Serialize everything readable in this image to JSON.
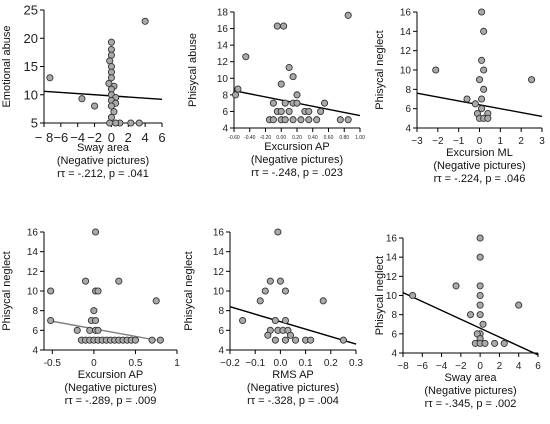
{
  "colors": {
    "point_fill": "#a9a9a9",
    "point_stroke": "#333333",
    "regression_line": "#000000",
    "regression_line_gray": "#808080",
    "axis": "#000000"
  },
  "chart_data": [
    {
      "type": "scatter",
      "xlabel": "Sway area",
      "subtitle": "(Negative pictures)",
      "stat": "rτ = -.212, p = .041",
      "ylabel": "Emotional abuse",
      "xlim": [
        -8,
        6
      ],
      "ylim": [
        5,
        25
      ],
      "xticks": [
        -8,
        -6,
        -4,
        -2,
        0,
        2,
        4,
        6
      ],
      "xtick_labels": [
        "− 8",
        "−6",
        "−4",
        "−2",
        "0",
        "2",
        "4",
        "6"
      ],
      "yticks": [
        5,
        10,
        15,
        20,
        25
      ],
      "grid": false,
      "fit_line": {
        "x": [
          -8,
          6
        ],
        "y": [
          10.6,
          9.2
        ],
        "color": "black"
      },
      "points": [
        {
          "x": -7.3,
          "y": 13
        },
        {
          "x": -3.5,
          "y": 9.3
        },
        {
          "x": -2,
          "y": 8
        },
        {
          "x": 4,
          "y": 23
        },
        {
          "x": 2.3,
          "y": 5
        },
        {
          "x": 3.3,
          "y": 5
        },
        {
          "x": 0,
          "y": 19.3
        },
        {
          "x": 0,
          "y": 18
        },
        {
          "x": 0,
          "y": 17
        },
        {
          "x": -0.2,
          "y": 16
        },
        {
          "x": 0,
          "y": 15
        },
        {
          "x": 0,
          "y": 14
        },
        {
          "x": 0,
          "y": 13
        },
        {
          "x": -0.3,
          "y": 12
        },
        {
          "x": 0.3,
          "y": 11.5
        },
        {
          "x": 0,
          "y": 11
        },
        {
          "x": 0,
          "y": 10
        },
        {
          "x": 0.5,
          "y": 9.5
        },
        {
          "x": 0,
          "y": 9
        },
        {
          "x": 0.5,
          "y": 8.5
        },
        {
          "x": 0,
          "y": 8
        },
        {
          "x": 0.3,
          "y": 7
        },
        {
          "x": 0,
          "y": 6
        },
        {
          "x": 1,
          "y": 5
        },
        {
          "x": 0.5,
          "y": 5
        },
        {
          "x": -0.2,
          "y": 5
        }
      ]
    },
    {
      "type": "scatter",
      "xlabel": "Excursion AP",
      "subtitle": "(Negative pictures)",
      "stat": "rτ = -.248, p = .023",
      "ylabel": "Phisycal abuse",
      "xlim": [
        -0.6,
        1.0
      ],
      "ylim": [
        4,
        18
      ],
      "xticks": [
        -0.6,
        -0.4,
        -0.2,
        0,
        0.2,
        0.4,
        0.6,
        0.8,
        1.0
      ],
      "xtick_labels": [
        "-0.60",
        "-0.40",
        "-0.20",
        "0.00",
        "0.20",
        "0.40",
        "0.60",
        "0.80",
        "1.00"
      ],
      "yticks": [
        4,
        6,
        8,
        10,
        12,
        14,
        16,
        18
      ],
      "grid": false,
      "fit_line": {
        "x": [
          -0.6,
          1.0
        ],
        "y": [
          8.5,
          5.5
        ],
        "color": "black"
      },
      "points": [
        {
          "x": -0.55,
          "y": 8.7
        },
        {
          "x": -0.58,
          "y": 8
        },
        {
          "x": -0.45,
          "y": 12.6
        },
        {
          "x": -0.05,
          "y": 16.3
        },
        {
          "x": 0.03,
          "y": 16.3
        },
        {
          "x": 0.85,
          "y": 17.6
        },
        {
          "x": 0.1,
          "y": 11.3
        },
        {
          "x": 0.15,
          "y": 10.2
        },
        {
          "x": 0.0,
          "y": 9.3
        },
        {
          "x": 0.2,
          "y": 8
        },
        {
          "x": -0.1,
          "y": 7
        },
        {
          "x": 0.05,
          "y": 7
        },
        {
          "x": 0.15,
          "y": 7
        },
        {
          "x": 0.2,
          "y": 7
        },
        {
          "x": -0.05,
          "y": 6
        },
        {
          "x": 0.0,
          "y": 6
        },
        {
          "x": 0.1,
          "y": 6
        },
        {
          "x": 0.3,
          "y": 6
        },
        {
          "x": 0.35,
          "y": 6
        },
        {
          "x": 0.5,
          "y": 6
        },
        {
          "x": 0.55,
          "y": 7
        },
        {
          "x": -0.15,
          "y": 5
        },
        {
          "x": -0.1,
          "y": 5
        },
        {
          "x": 0.0,
          "y": 5
        },
        {
          "x": 0.05,
          "y": 5
        },
        {
          "x": 0.15,
          "y": 5
        },
        {
          "x": 0.25,
          "y": 5
        },
        {
          "x": 0.35,
          "y": 5
        },
        {
          "x": 0.45,
          "y": 5
        },
        {
          "x": 0.75,
          "y": 5
        },
        {
          "x": 0.85,
          "y": 5
        }
      ]
    },
    {
      "type": "scatter",
      "xlabel": "Excursion ML",
      "subtitle": "(Negative pictures)",
      "stat": "rτ = -.224, p = .046",
      "ylabel": "Phisycal neglect",
      "xlim": [
        -3,
        3
      ],
      "ylim": [
        4,
        16
      ],
      "xticks": [
        -3,
        -2,
        -1,
        0,
        1,
        2,
        3
      ],
      "xtick_labels": [
        "−3",
        "−2",
        "−1",
        "0",
        "1",
        "2",
        "3"
      ],
      "yticks": [
        4,
        6,
        8,
        10,
        12,
        14,
        16
      ],
      "grid": false,
      "fit_line": {
        "x": [
          -3,
          3
        ],
        "y": [
          7.6,
          5.2
        ],
        "color": "black"
      },
      "points": [
        {
          "x": -2.1,
          "y": 10
        },
        {
          "x": 0.1,
          "y": 16
        },
        {
          "x": 2.5,
          "y": 9
        },
        {
          "x": 0.2,
          "y": 14
        },
        {
          "x": 0.1,
          "y": 11
        },
        {
          "x": 0.2,
          "y": 10
        },
        {
          "x": 0.0,
          "y": 9
        },
        {
          "x": 0.2,
          "y": 8
        },
        {
          "x": -0.6,
          "y": 7
        },
        {
          "x": 0.1,
          "y": 7
        },
        {
          "x": -0.2,
          "y": 6.5
        },
        {
          "x": 0.1,
          "y": 6
        },
        {
          "x": -0.1,
          "y": 5.5
        },
        {
          "x": 0.4,
          "y": 5.5
        },
        {
          "x": 0.0,
          "y": 5
        },
        {
          "x": 0.2,
          "y": 5
        },
        {
          "x": 0.4,
          "y": 5
        }
      ]
    },
    {
      "type": "scatter",
      "xlabel": "Excursion AP",
      "subtitle": "(Negative pictures)",
      "stat": "rτ = -.289, p = .009",
      "ylabel": "Phisycal neglect",
      "xlim": [
        -0.6,
        1.0
      ],
      "ylim": [
        4,
        16
      ],
      "xticks": [
        -0.5,
        0,
        0.5,
        1
      ],
      "xtick_labels": [
        "-0.5",
        "0",
        "0.5",
        "1"
      ],
      "yticks": [
        4,
        6,
        8,
        10,
        12,
        14,
        16
      ],
      "grid": false,
      "fit_line": {
        "x": [
          -0.55,
          0.75
        ],
        "y": [
          7.0,
          5.0
        ],
        "color": "gray"
      },
      "points": [
        {
          "x": 0.02,
          "y": 16
        },
        {
          "x": -0.52,
          "y": 10
        },
        {
          "x": -0.1,
          "y": 11
        },
        {
          "x": 0.02,
          "y": 10
        },
        {
          "x": 0.05,
          "y": 10
        },
        {
          "x": 0.3,
          "y": 11
        },
        {
          "x": 0.75,
          "y": 9
        },
        {
          "x": 0.0,
          "y": 8
        },
        {
          "x": -0.03,
          "y": 7
        },
        {
          "x": 0.02,
          "y": 7
        },
        {
          "x": -0.52,
          "y": 7
        },
        {
          "x": -0.05,
          "y": 6
        },
        {
          "x": 0.02,
          "y": 6
        },
        {
          "x": 0.05,
          "y": 6
        },
        {
          "x": -0.2,
          "y": 6
        },
        {
          "x": -0.15,
          "y": 5
        },
        {
          "x": -0.1,
          "y": 5
        },
        {
          "x": -0.05,
          "y": 5
        },
        {
          "x": 0.0,
          "y": 5
        },
        {
          "x": 0.05,
          "y": 5
        },
        {
          "x": 0.1,
          "y": 5
        },
        {
          "x": 0.15,
          "y": 5
        },
        {
          "x": 0.2,
          "y": 5
        },
        {
          "x": 0.25,
          "y": 5
        },
        {
          "x": 0.3,
          "y": 5
        },
        {
          "x": 0.35,
          "y": 5
        },
        {
          "x": 0.4,
          "y": 5
        },
        {
          "x": 0.45,
          "y": 5
        },
        {
          "x": 0.5,
          "y": 5
        },
        {
          "x": 0.7,
          "y": 5
        },
        {
          "x": 0.8,
          "y": 5
        }
      ]
    },
    {
      "type": "scatter",
      "xlabel": "RMS AP",
      "subtitle": "(Negative pictures)",
      "stat": "rτ = -.328, p = .004",
      "ylabel": "Phisycal neglect",
      "xlim": [
        -0.2,
        0.3
      ],
      "ylim": [
        4,
        16
      ],
      "xticks": [
        -0.2,
        -0.1,
        0,
        0.1,
        0.2,
        0.3
      ],
      "xtick_labels": [
        "−0.2",
        "−0.1",
        "0.0",
        "0.1",
        "0.2",
        "0.3"
      ],
      "yticks": [
        4,
        6,
        8,
        10,
        12,
        14,
        16
      ],
      "grid": false,
      "fit_line": {
        "x": [
          -0.2,
          0.3
        ],
        "y": [
          8.4,
          4.6
        ],
        "color": "black"
      },
      "points": [
        {
          "x": -0.01,
          "y": 16
        },
        {
          "x": -0.04,
          "y": 11
        },
        {
          "x": 0.0,
          "y": 11
        },
        {
          "x": -0.06,
          "y": 10
        },
        {
          "x": 0.02,
          "y": 10
        },
        {
          "x": -0.08,
          "y": 9
        },
        {
          "x": 0.17,
          "y": 9
        },
        {
          "x": -0.15,
          "y": 7
        },
        {
          "x": -0.02,
          "y": 7
        },
        {
          "x": 0.02,
          "y": 7
        },
        {
          "x": -0.04,
          "y": 6
        },
        {
          "x": -0.01,
          "y": 6
        },
        {
          "x": 0.01,
          "y": 6
        },
        {
          "x": 0.03,
          "y": 6
        },
        {
          "x": -0.05,
          "y": 5.5
        },
        {
          "x": 0.04,
          "y": 5.5
        },
        {
          "x": -0.02,
          "y": 5
        },
        {
          "x": 0.02,
          "y": 5
        },
        {
          "x": 0.06,
          "y": 5
        },
        {
          "x": 0.1,
          "y": 5
        },
        {
          "x": 0.25,
          "y": 5
        },
        {
          "x": 0.12,
          "y": 5
        }
      ]
    },
    {
      "type": "scatter",
      "xlabel": "Sway area",
      "subtitle": "(Negative pictures)",
      "stat": "rτ = -.345, p = .002",
      "ylabel": "Phisycal neglect",
      "xlim": [
        -8,
        6
      ],
      "ylim": [
        4,
        16
      ],
      "xticks": [
        -8,
        -6,
        -4,
        -2,
        0,
        2,
        4,
        6
      ],
      "xtick_labels": [
        "−8",
        "−6",
        "−4",
        "−2",
        "0",
        "2",
        "4",
        "6"
      ],
      "yticks": [
        4,
        6,
        8,
        10,
        12,
        14,
        16
      ],
      "grid": false,
      "fit_line": {
        "x": [
          -8,
          6
        ],
        "y": [
          10.3,
          3.8
        ],
        "color": "black"
      },
      "points": [
        {
          "x": 0.0,
          "y": 16
        },
        {
          "x": 0.0,
          "y": 14
        },
        {
          "x": -7,
          "y": 10
        },
        {
          "x": -2.5,
          "y": 11
        },
        {
          "x": 0.0,
          "y": 11
        },
        {
          "x": 4,
          "y": 9
        },
        {
          "x": 0.0,
          "y": 10
        },
        {
          "x": 0.0,
          "y": 9
        },
        {
          "x": -1,
          "y": 8
        },
        {
          "x": 0.0,
          "y": 8
        },
        {
          "x": 0.3,
          "y": 7
        },
        {
          "x": 0.0,
          "y": 6
        },
        {
          "x": -0.3,
          "y": 6
        },
        {
          "x": 0.0,
          "y": 5.5
        },
        {
          "x": -0.5,
          "y": 5
        },
        {
          "x": 0.0,
          "y": 5
        },
        {
          "x": 0.5,
          "y": 5
        },
        {
          "x": 1.5,
          "y": 5
        },
        {
          "x": 2.5,
          "y": 5
        }
      ]
    }
  ]
}
